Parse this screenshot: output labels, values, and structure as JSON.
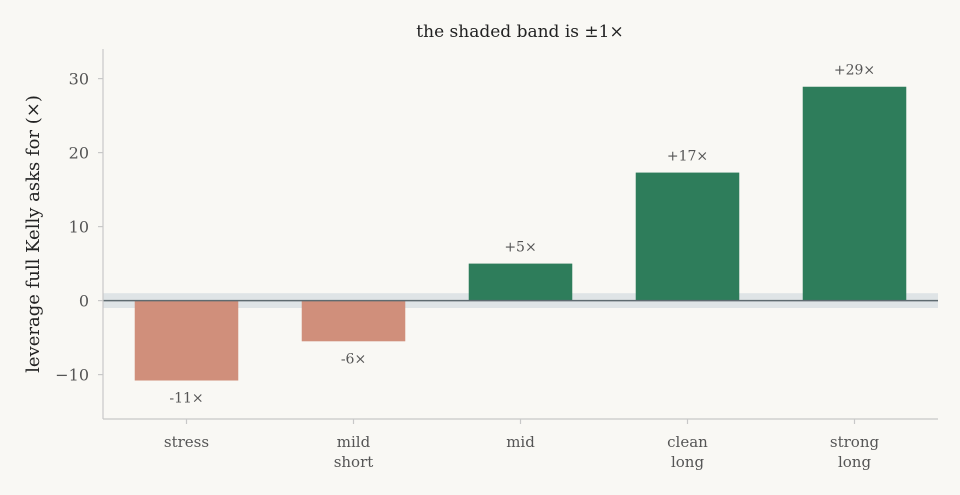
{
  "chart_data": {
    "type": "bar",
    "title": "the shaded band is ±1×",
    "xlabel": "",
    "ylabel": "leverage full Kelly asks for (×)",
    "categories": [
      [
        "stress"
      ],
      [
        "mild",
        "short"
      ],
      [
        "mid"
      ],
      [
        "clean",
        "long"
      ],
      [
        "strong",
        "long"
      ]
    ],
    "values": [
      -10.8,
      -5.5,
      5.0,
      17.3,
      28.9
    ],
    "data_labels": [
      "-11×",
      "-6×",
      "+5×",
      "+17×",
      "+29×"
    ],
    "ylim": [
      -16,
      34
    ],
    "yticks": [
      -10,
      0,
      10,
      20,
      30
    ],
    "band": [
      -1,
      1
    ],
    "grid": false,
    "colors": {
      "positive": "#2e7d5b",
      "negative": "#d08f7b",
      "band": "#dfe4e6",
      "zero_line": "#5f6b70",
      "axis": "#c8c8c8"
    }
  }
}
